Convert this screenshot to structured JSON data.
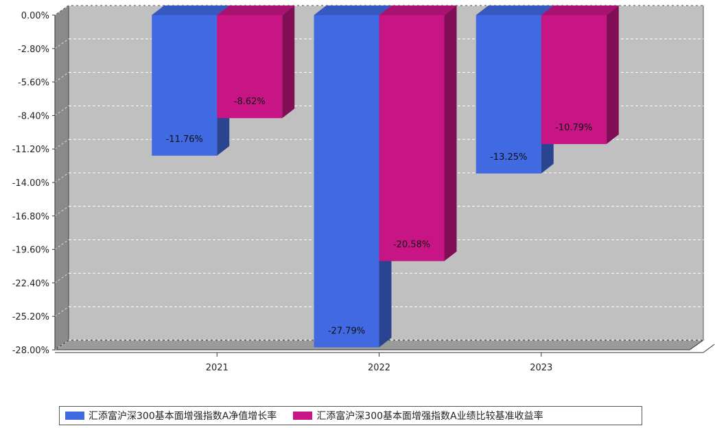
{
  "chart_data": {
    "type": "bar",
    "categories": [
      "2021",
      "2022",
      "2023"
    ],
    "series": [
      {
        "name": "汇添富沪深300基本面增强指数A净值增长率",
        "values": [
          -11.76,
          -27.79,
          -13.25
        ],
        "labels": [
          "-11.76%",
          "-27.79%",
          "-13.25%"
        ],
        "color": "#4169e1"
      },
      {
        "name": "汇添富沪深300基本面增强指数A业绩比较基准收益率",
        "values": [
          -8.62,
          -20.58,
          -10.79
        ],
        "labels": [
          "-8.62%",
          "-20.58%",
          "-10.79%"
        ],
        "color": "#c71585"
      }
    ],
    "ylim": [
      -28.0,
      0.0
    ],
    "yticks": [
      0.0,
      -2.8,
      -5.6,
      -8.4,
      -11.2,
      -14.0,
      -16.8,
      -19.6,
      -22.4,
      -25.2,
      -28.0
    ],
    "ytick_labels": [
      "0.00%",
      "-2.80%",
      "-5.60%",
      "-8.40%",
      "-11.20%",
      "-14.00%",
      "-16.80%",
      "-19.60%",
      "-22.40%",
      "-25.20%",
      "-28.00%"
    ],
    "grid": true,
    "style": "3d",
    "legend_position": "bottom",
    "plot_background": "#c0c0c0"
  }
}
